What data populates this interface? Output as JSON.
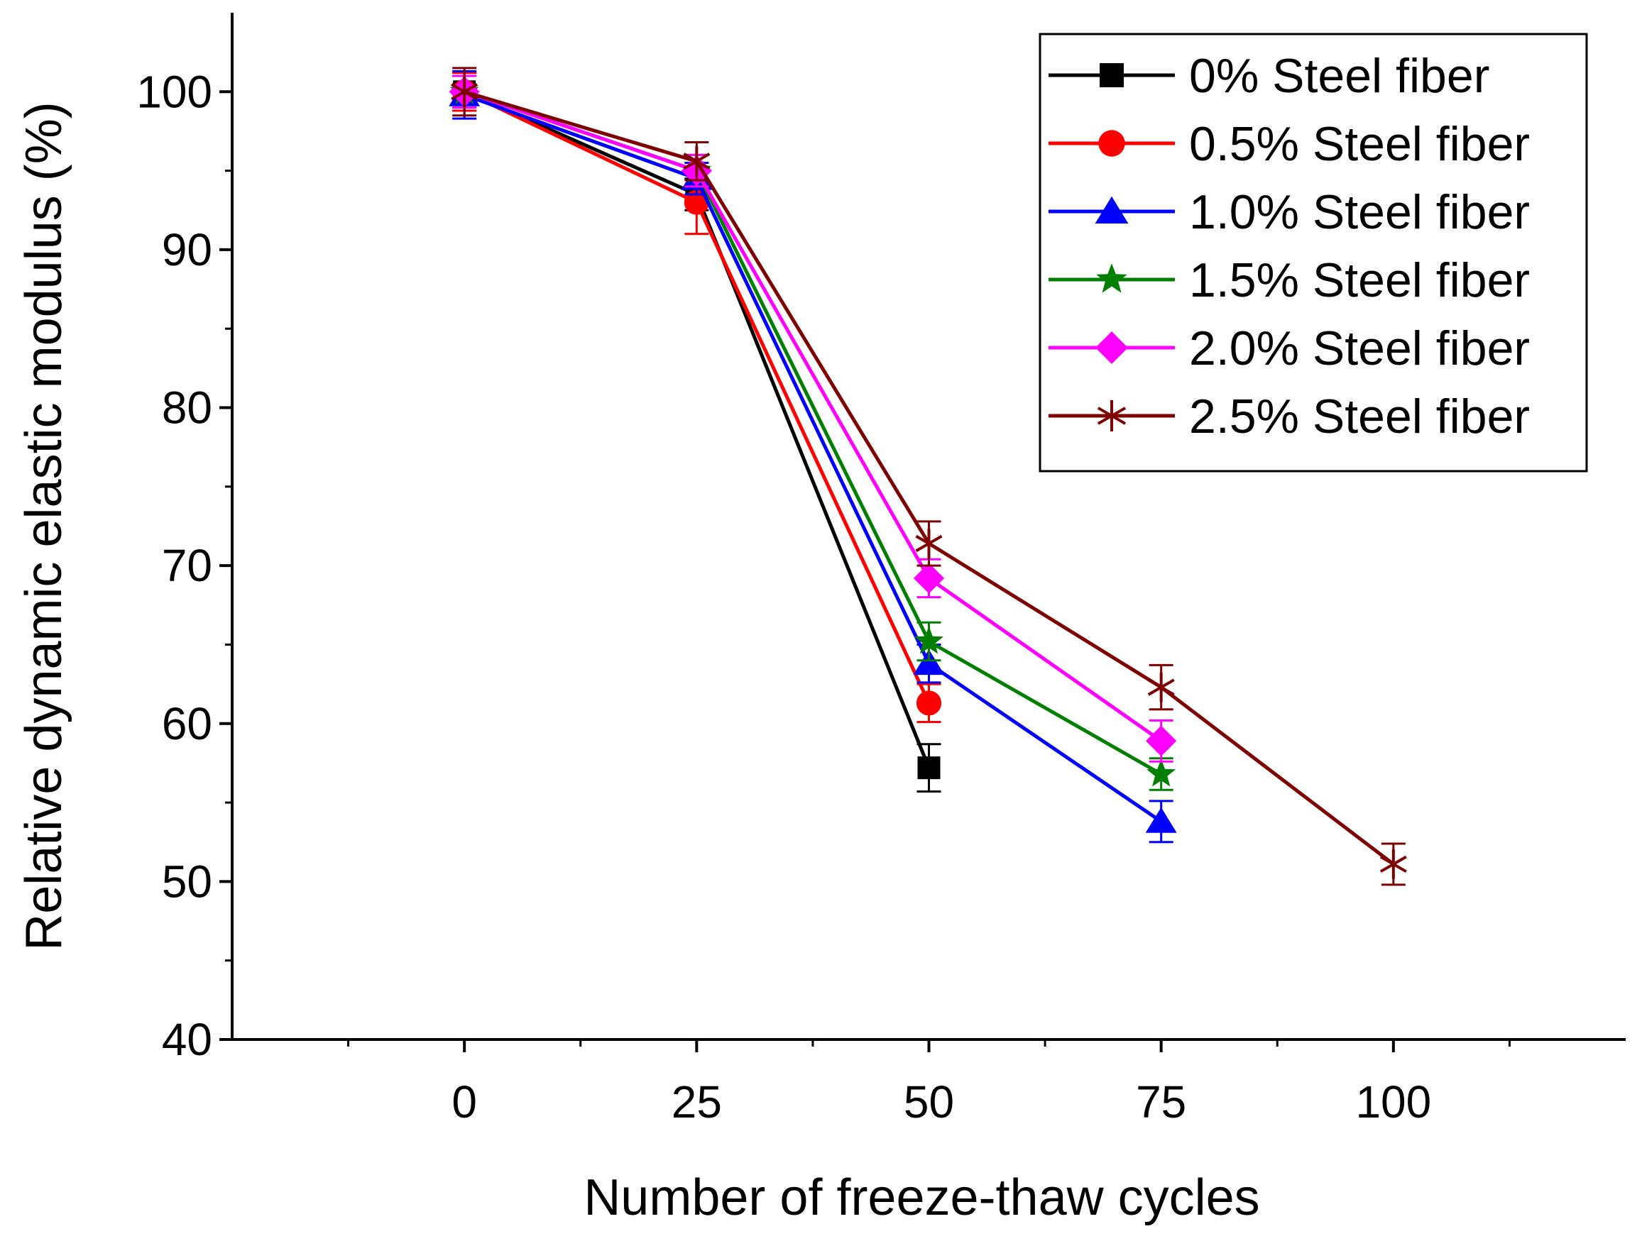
{
  "chart_data": {
    "type": "line",
    "title": "",
    "xlabel": "Number of freeze-thaw cycles",
    "ylabel": "Relative dynamic elastic modulus (%)",
    "xlim": [
      -25,
      125
    ],
    "ylim": [
      40,
      105
    ],
    "xticks": [
      0,
      25,
      50,
      75,
      100
    ],
    "xtick_labels": [
      "0",
      "25",
      "50",
      "75",
      "100"
    ],
    "yticks": [
      40,
      50,
      60,
      70,
      80,
      90,
      100
    ],
    "ytick_labels": [
      "40",
      "50",
      "60",
      "70",
      "80",
      "90",
      "100"
    ],
    "legend_position": "top-right",
    "grid": false,
    "series": [
      {
        "name": "0% Steel fiber",
        "color": "#000000",
        "marker": "square",
        "x": [
          0,
          25,
          50
        ],
        "values": [
          100,
          93.5,
          57.2
        ],
        "errors": [
          1.2,
          1.0,
          1.5
        ]
      },
      {
        "name": "0.5% Steel fiber",
        "color": "#ff0000",
        "marker": "circle",
        "x": [
          0,
          25,
          50
        ],
        "values": [
          100,
          93.0,
          61.3
        ],
        "errors": [
          1.2,
          2.0,
          1.2
        ]
      },
      {
        "name": "1.0% Steel fiber",
        "color": "#0000ff",
        "marker": "triangle",
        "x": [
          0,
          25,
          50,
          75
        ],
        "values": [
          99.8,
          94.5,
          63.8,
          53.8
        ],
        "errors": [
          1.5,
          1.0,
          1.2,
          1.3
        ]
      },
      {
        "name": "1.5% Steel fiber",
        "color": "#007f00",
        "marker": "star",
        "x": [
          0,
          25,
          50,
          75
        ],
        "values": [
          100,
          95.0,
          65.2,
          56.8
        ],
        "errors": [
          1.0,
          1.0,
          1.2,
          1.0
        ]
      },
      {
        "name": "2.0% Steel fiber",
        "color": "#ff00ff",
        "marker": "diamond",
        "x": [
          0,
          25,
          50,
          75
        ],
        "values": [
          100,
          95.0,
          69.2,
          58.9
        ],
        "errors": [
          1.0,
          1.0,
          1.2,
          1.3
        ]
      },
      {
        "name": "2.5% Steel fiber",
        "color": "#7f0000",
        "marker": "asterisk",
        "x": [
          0,
          25,
          50,
          75,
          100
        ],
        "values": [
          100,
          95.6,
          71.4,
          62.3,
          51.1
        ],
        "errors": [
          1.5,
          1.2,
          1.4,
          1.4,
          1.3
        ]
      }
    ]
  }
}
